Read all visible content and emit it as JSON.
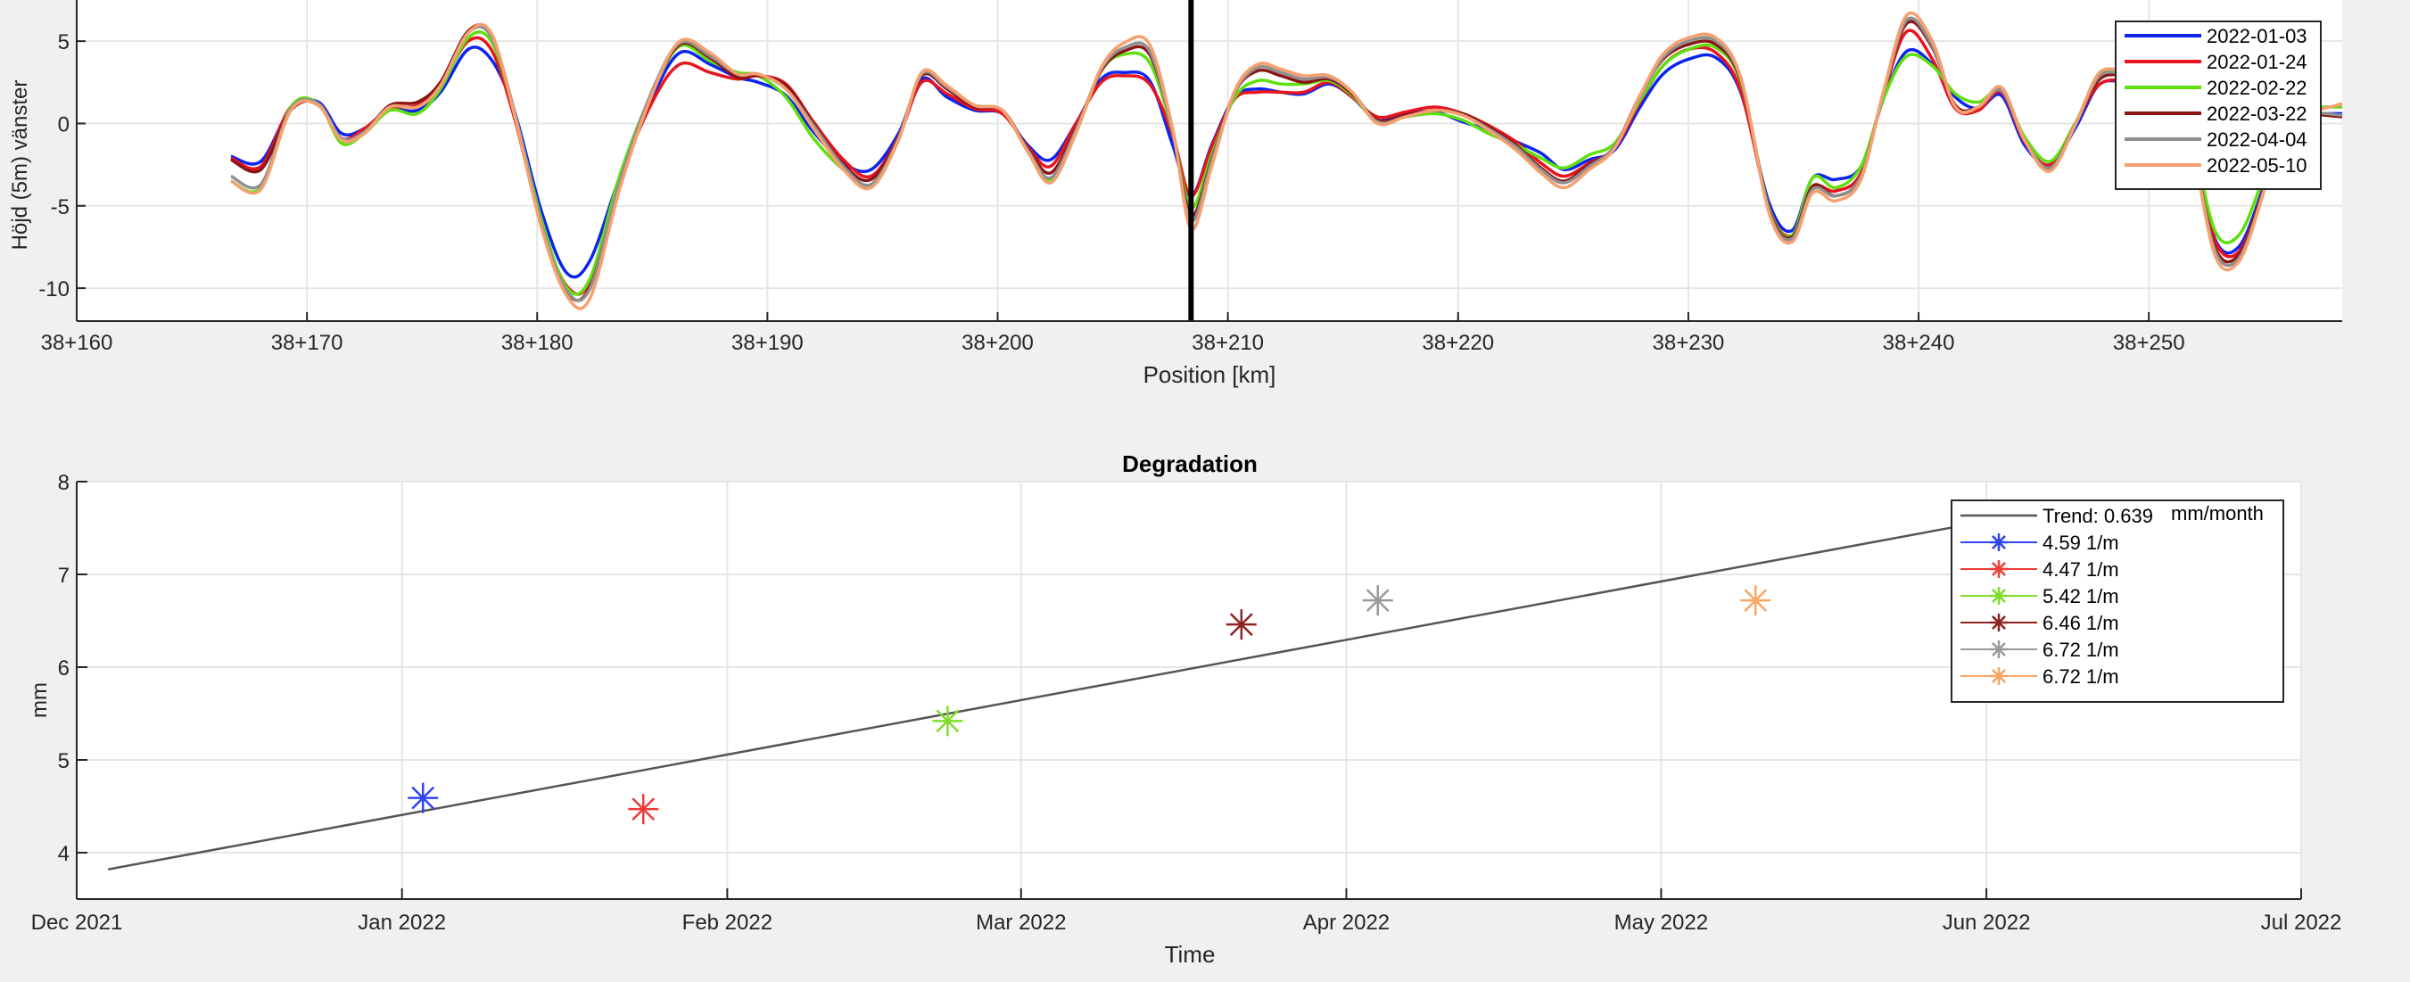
{
  "chart_data": [
    {
      "type": "line",
      "title": "",
      "xlabel": "Position [km]",
      "ylabel": "Höjd (5m) vänster",
      "xlim": [
        38160,
        258.4
      ],
      "xlim_note": "",
      "x_range_km": [
        160,
        258.4
      ],
      "ylim": [
        -12,
        7.5
      ],
      "yticks": [
        5,
        0,
        -5,
        -10
      ],
      "xtick_labels": [
        "38+160",
        "38+170",
        "38+180",
        "38+190",
        "38+200",
        "38+210",
        "38+220",
        "38+230",
        "38+240",
        "38+250"
      ],
      "xticks": [
        160,
        170,
        180,
        190,
        200,
        210,
        220,
        230,
        240,
        250
      ],
      "grid": true,
      "legend_position": "top-right",
      "marker_line_x": 208.4,
      "x": [
        166.7,
        168,
        169.3,
        170.5,
        171.5,
        172.5,
        173.6,
        174.8,
        175.8,
        177,
        178,
        179,
        180.2,
        181.3,
        182.3,
        183.6,
        185,
        186.2,
        187.5,
        188.7,
        189.6,
        190.8,
        192,
        193.3,
        194.5,
        195.7,
        196.7,
        197.8,
        199,
        200.2,
        201.3,
        202.3,
        203.4,
        204.5,
        205.5,
        206.6,
        207.6,
        208.4,
        209.3,
        210.3,
        211.3,
        212.3,
        213.3,
        214.4,
        215.4,
        216.5,
        217.7,
        219,
        220.2,
        221.3,
        222.5,
        223.6,
        224.6,
        225.7,
        226.8,
        227.9,
        228.9,
        230,
        231.2,
        232.3,
        233.5,
        234.5,
        235.4,
        236.4,
        237.5,
        238.5,
        239.5,
        240.6,
        241.6,
        242.6,
        243.6,
        244.6,
        245.7,
        246.8,
        247.8,
        248.8,
        249.9,
        250.9,
        251.9,
        252.9,
        253.9,
        254.9,
        256,
        257.1,
        258.4
      ],
      "series": [
        {
          "name": "2022-01-03",
          "color": "#0b24ee",
          "values": [
            -2,
            -2.3,
            0.9,
            1.3,
            -0.6,
            -0.3,
            0.8,
            0.8,
            1.9,
            4.5,
            3.9,
            0.8,
            -5.4,
            -9.1,
            -8.3,
            -3.2,
            1.6,
            4.3,
            3.6,
            2.8,
            2.5,
            1.7,
            -0.5,
            -2.4,
            -2.8,
            -0.6,
            2.7,
            1.6,
            0.8,
            0.6,
            -1.3,
            -2.2,
            0,
            2.7,
            3.1,
            2.6,
            -1.3,
            -4.4,
            -1.3,
            1.6,
            2.1,
            1.9,
            1.8,
            2.4,
            1.6,
            0.2,
            0.6,
            0.7,
            0.1,
            -0.4,
            -1.1,
            -1.8,
            -2.8,
            -2.2,
            -1.6,
            1,
            3,
            3.9,
            4,
            1.8,
            -4.8,
            -6.5,
            -3.3,
            -3.4,
            -2.6,
            1.6,
            4.4,
            3.6,
            1.6,
            0.9,
            1.7,
            -1.3,
            -2.5,
            -0.3,
            2.3,
            2.6,
            2.8,
            2.4,
            -1.4,
            -7.1,
            -7.5,
            -4.2,
            0.6,
            0.6,
            0.6
          ]
        },
        {
          "name": "2022-01-24",
          "color": "#e8141e",
          "values": [
            -2.1,
            -2.6,
            1,
            1.1,
            -0.9,
            -0.3,
            0.9,
            1.1,
            2.3,
            5,
            4.5,
            0.4,
            -6.2,
            -9.9,
            -9.6,
            -3.4,
            1.3,
            3.6,
            3.1,
            2.7,
            2.9,
            2.4,
            0.1,
            -2.2,
            -3.2,
            -0.8,
            2.5,
            1.8,
            0.9,
            0.6,
            -1.4,
            -2.6,
            0,
            2.5,
            2.9,
            2.4,
            -0.7,
            -4.4,
            -1.4,
            1.5,
            1.9,
            1.9,
            1.9,
            2.5,
            1.6,
            0.4,
            0.7,
            1,
            0.6,
            -0.1,
            -1.1,
            -2.4,
            -3.2,
            -2.4,
            -1.5,
            1.3,
            3.5,
            4.5,
            4.3,
            1.9,
            -5.1,
            -6.8,
            -3.9,
            -4.1,
            -3,
            1.9,
            5.6,
            3.9,
            0.9,
            0.8,
            1.9,
            -1.1,
            -2.5,
            0,
            2.3,
            2.7,
            2.9,
            2.6,
            -1.6,
            -7.2,
            -7.8,
            -4.4,
            0.7,
            0.6,
            0.5
          ]
        },
        {
          "name": "2022-02-22",
          "color": "#5fe00e",
          "values": [
            -3.5,
            -3.9,
            1,
            1.2,
            -1.2,
            -0.6,
            0.8,
            0.6,
            2.1,
            5.2,
            5,
            0.7,
            -5.9,
            -10,
            -9.4,
            -3.1,
            1.9,
            4.7,
            3.8,
            3.1,
            2.9,
            1.6,
            -0.9,
            -2.8,
            -3.7,
            -0.8,
            2.9,
            2.2,
            1.1,
            0.8,
            -1.6,
            -3.4,
            -0.5,
            3.2,
            4.2,
            3.7,
            -0.5,
            -5.1,
            -1.9,
            1.6,
            2.6,
            2.4,
            2.4,
            2.6,
            1.7,
            0.1,
            0.4,
            0.6,
            0.2,
            -0.6,
            -1.3,
            -2.1,
            -2.7,
            -1.9,
            -1.2,
            1.4,
            3.5,
            4.5,
            4.6,
            2.4,
            -5.1,
            -6.8,
            -3.3,
            -3.9,
            -2.6,
            1.6,
            4.1,
            3.5,
            1.8,
            1.3,
            2,
            -0.8,
            -2.3,
            0,
            2.9,
            3.3,
            3.3,
            3,
            -1.1,
            -6.6,
            -6.8,
            -3.6,
            1,
            1,
            1
          ]
        },
        {
          "name": "2022-03-22",
          "color": "#8b1414",
          "values": [
            -2.2,
            -2.8,
            0.8,
            1.2,
            -0.9,
            -0.5,
            1.1,
            1.3,
            2.5,
            5.6,
            5.4,
            0.6,
            -6.3,
            -10.3,
            -9.9,
            -3.6,
            1.9,
            4.8,
            4,
            2.8,
            2.9,
            2.3,
            0,
            -2.5,
            -3.4,
            -0.8,
            2.9,
            2.1,
            1,
            0.8,
            -1.5,
            -3,
            -0.3,
            3.2,
            4.4,
            4.2,
            -0.4,
            -5.6,
            -2.2,
            1.9,
            3.2,
            2.9,
            2.5,
            2.7,
            1.8,
            0.2,
            0.5,
            0.8,
            0.6,
            -0.2,
            -1.3,
            -2.7,
            -3.5,
            -2.5,
            -1.4,
            1.7,
            3.9,
            4.8,
            4.8,
            2.5,
            -5.2,
            -6.9,
            -3.8,
            -4.4,
            -3.2,
            2,
            6.1,
            4.6,
            1.1,
            1,
            2.1,
            -1,
            -2.7,
            -0.1,
            2.6,
            3,
            3.2,
            2.8,
            -1.6,
            -7.6,
            -8,
            -4.4,
            0.9,
            0.6,
            0.4
          ]
        },
        {
          "name": "2022-04-04",
          "color": "#8f8f8f",
          "values": [
            -3.2,
            -3.7,
            0.9,
            1.2,
            -0.9,
            -0.5,
            1,
            1,
            2.3,
            5.5,
            5.3,
            0.8,
            -6.2,
            -10.2,
            -10,
            -3.5,
            2,
            4.9,
            4.1,
            3,
            3,
            2.1,
            -0.1,
            -2.6,
            -3.7,
            -0.9,
            3,
            2.2,
            1.1,
            0.8,
            -1.6,
            -3.3,
            -0.4,
            3.3,
            4.6,
            4.4,
            -0.5,
            -5.9,
            -2.3,
            1.9,
            3.4,
            3.1,
            2.7,
            2.8,
            1.9,
            0.1,
            0.4,
            0.8,
            0.5,
            -0.3,
            -1.4,
            -2.8,
            -3.6,
            -2.6,
            -1.4,
            1.6,
            4,
            5,
            5,
            2.6,
            -5.3,
            -7,
            -4,
            -4.4,
            -3.2,
            2,
            6.3,
            4.7,
            1,
            1,
            2,
            -1,
            -2.7,
            -0.1,
            2.8,
            3.1,
            3.3,
            2.9,
            -1.6,
            -7.8,
            -8.2,
            -4.5,
            1,
            0.7,
            0.5
          ]
        },
        {
          "name": "2022-05-10",
          "color": "#f6a070",
          "values": [
            -3.5,
            -4,
            0.8,
            1.1,
            -1,
            -0.6,
            1,
            1,
            2.3,
            5.5,
            5.5,
            0.6,
            -6.4,
            -10.5,
            -10.6,
            -3.9,
            1.8,
            5,
            4.3,
            3,
            3,
            2.1,
            -0.3,
            -2.8,
            -3.9,
            -1,
            3.1,
            2.3,
            1.1,
            0.8,
            -1.7,
            -3.6,
            -0.6,
            3.4,
            4.9,
            4.8,
            -0.3,
            -6.4,
            -2.6,
            2,
            3.6,
            3.3,
            2.9,
            2.9,
            1.9,
            0,
            0.4,
            0.8,
            0.5,
            -0.4,
            -1.6,
            -3,
            -3.9,
            -2.8,
            -1.5,
            1.7,
            4.2,
            5.2,
            5.2,
            2.7,
            -5.4,
            -7.2,
            -4.2,
            -4.7,
            -3.4,
            2.1,
            6.6,
            5,
            1,
            1,
            2.2,
            -1,
            -2.9,
            -0.1,
            3,
            3.3,
            3.6,
            3.3,
            -1.6,
            -8.1,
            -8.4,
            -4.6,
            1.1,
            0.8,
            1.2
          ]
        }
      ]
    },
    {
      "type": "scatter",
      "title": "Degradation",
      "xlabel": "Time",
      "ylabel": "mm",
      "xlim": [
        "2021-12-01",
        "2022-07-01"
      ],
      "ylim": [
        3.5,
        8
      ],
      "yticks": [
        8,
        7,
        6,
        5,
        4
      ],
      "xtick_labels": [
        "Dec 2021",
        "Jan 2022",
        "Feb 2022",
        "Mar 2022",
        "Apr 2022",
        "May 2022",
        "Jun 2022",
        "Jul 2022"
      ],
      "xtick_dates": [
        "2021-12-01",
        "2022-01-01",
        "2022-02-01",
        "2022-03-01",
        "2022-04-01",
        "2022-05-01",
        "2022-06-01",
        "2022-07-01"
      ],
      "grid": true,
      "legend_position": "top-right",
      "trend": {
        "label": "Trend: 0.639",
        "unit": "mm/month",
        "color": "#555555",
        "x": [
          "2021-12-04",
          "2022-06-07"
        ],
        "y": [
          3.82,
          7.7
        ]
      },
      "series": [
        {
          "name": "4.59 1/m",
          "color": "#2f46f0",
          "x": "2022-01-03",
          "y": 4.59
        },
        {
          "name": "4.47 1/m",
          "color": "#f03a3a",
          "x": "2022-01-24",
          "y": 4.47
        },
        {
          "name": "5.42 1/m",
          "color": "#7ede2a",
          "x": "2022-02-22",
          "y": 5.42
        },
        {
          "name": "6.46 1/m",
          "color": "#8e2323",
          "x": "2022-03-22",
          "y": 6.46
        },
        {
          "name": "6.72 1/m",
          "color": "#9a9a9a",
          "x": "2022-04-04",
          "y": 6.72
        },
        {
          "name": "6.72 1/m",
          "color": "#f7a664",
          "x": "2022-05-10",
          "y": 6.72
        }
      ]
    }
  ]
}
